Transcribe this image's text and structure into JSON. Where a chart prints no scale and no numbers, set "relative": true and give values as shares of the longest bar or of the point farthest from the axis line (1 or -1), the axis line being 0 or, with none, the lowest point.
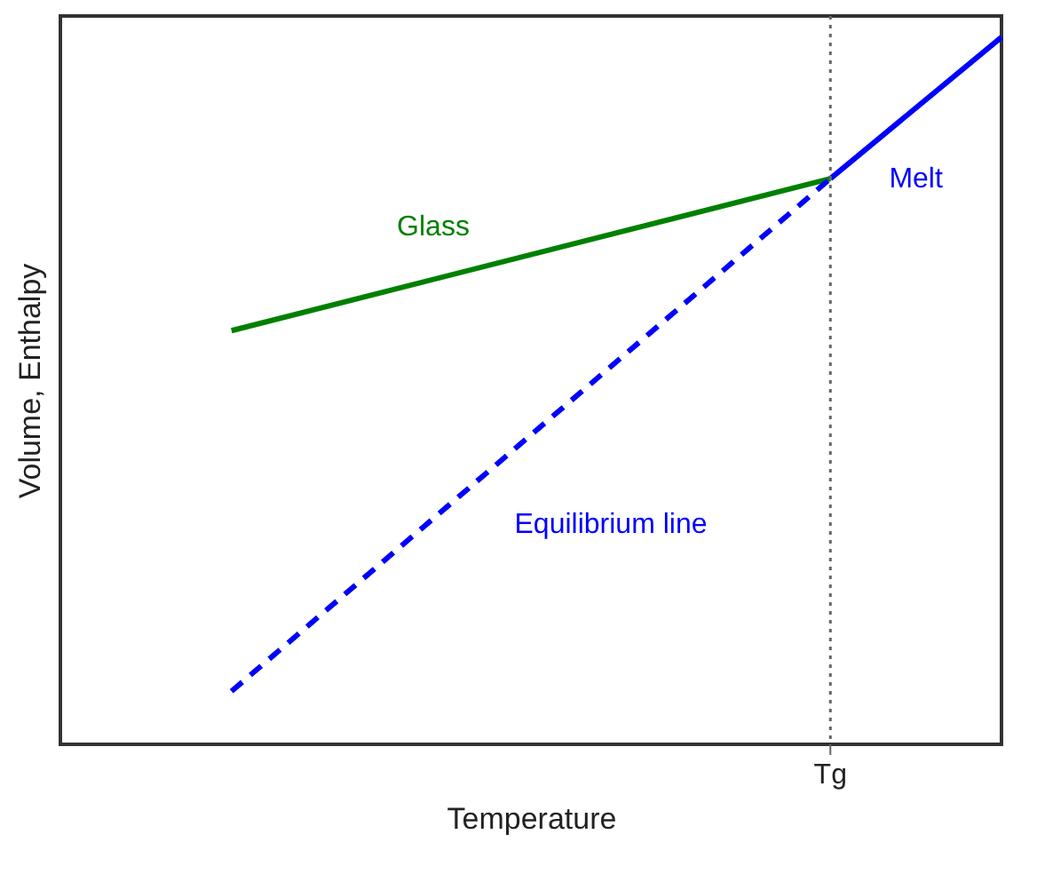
{
  "chart_data": {
    "type": "line",
    "relative": true,
    "xlabel": "Temperature",
    "ylabel": "Volume, Enthalpy",
    "categories": [
      null,
      null,
      null,
      null,
      null,
      null,
      null,
      null,
      null,
      null,
      null,
      null,
      null,
      null,
      null,
      null,
      null,
      null,
      null,
      null,
      null,
      null,
      null
    ],
    "grid": false,
    "marker": "none",
    "series": [
      {
        "name": "Glass",
        "color": "#008000",
        "values": [
          null,
          null,
          null,
          null,
          0.585,
          null,
          null,
          null,
          null,
          null,
          null,
          null,
          null,
          null,
          null,
          null,
          null,
          null,
          0.8,
          null,
          null,
          null,
          null
        ],
        "line_style": "solid"
      },
      {
        "name": "Equilibrium line",
        "color": "#0000ff",
        "values": [
          null,
          null,
          null,
          null,
          0.075,
          null,
          null,
          null,
          null,
          null,
          null,
          null,
          null,
          null,
          null,
          null,
          null,
          null,
          0.8,
          null,
          null,
          null,
          null
        ],
        "line_style": "dashed"
      },
      {
        "name": "Melt",
        "color": "#0000ff",
        "values": [
          null,
          null,
          null,
          null,
          null,
          null,
          null,
          null,
          null,
          null,
          null,
          null,
          null,
          null,
          null,
          null,
          null,
          null,
          0.8,
          null,
          null,
          null,
          1.0
        ],
        "line_style": "solid"
      }
    ],
    "annotations": [
      "Tg"
    ]
  }
}
